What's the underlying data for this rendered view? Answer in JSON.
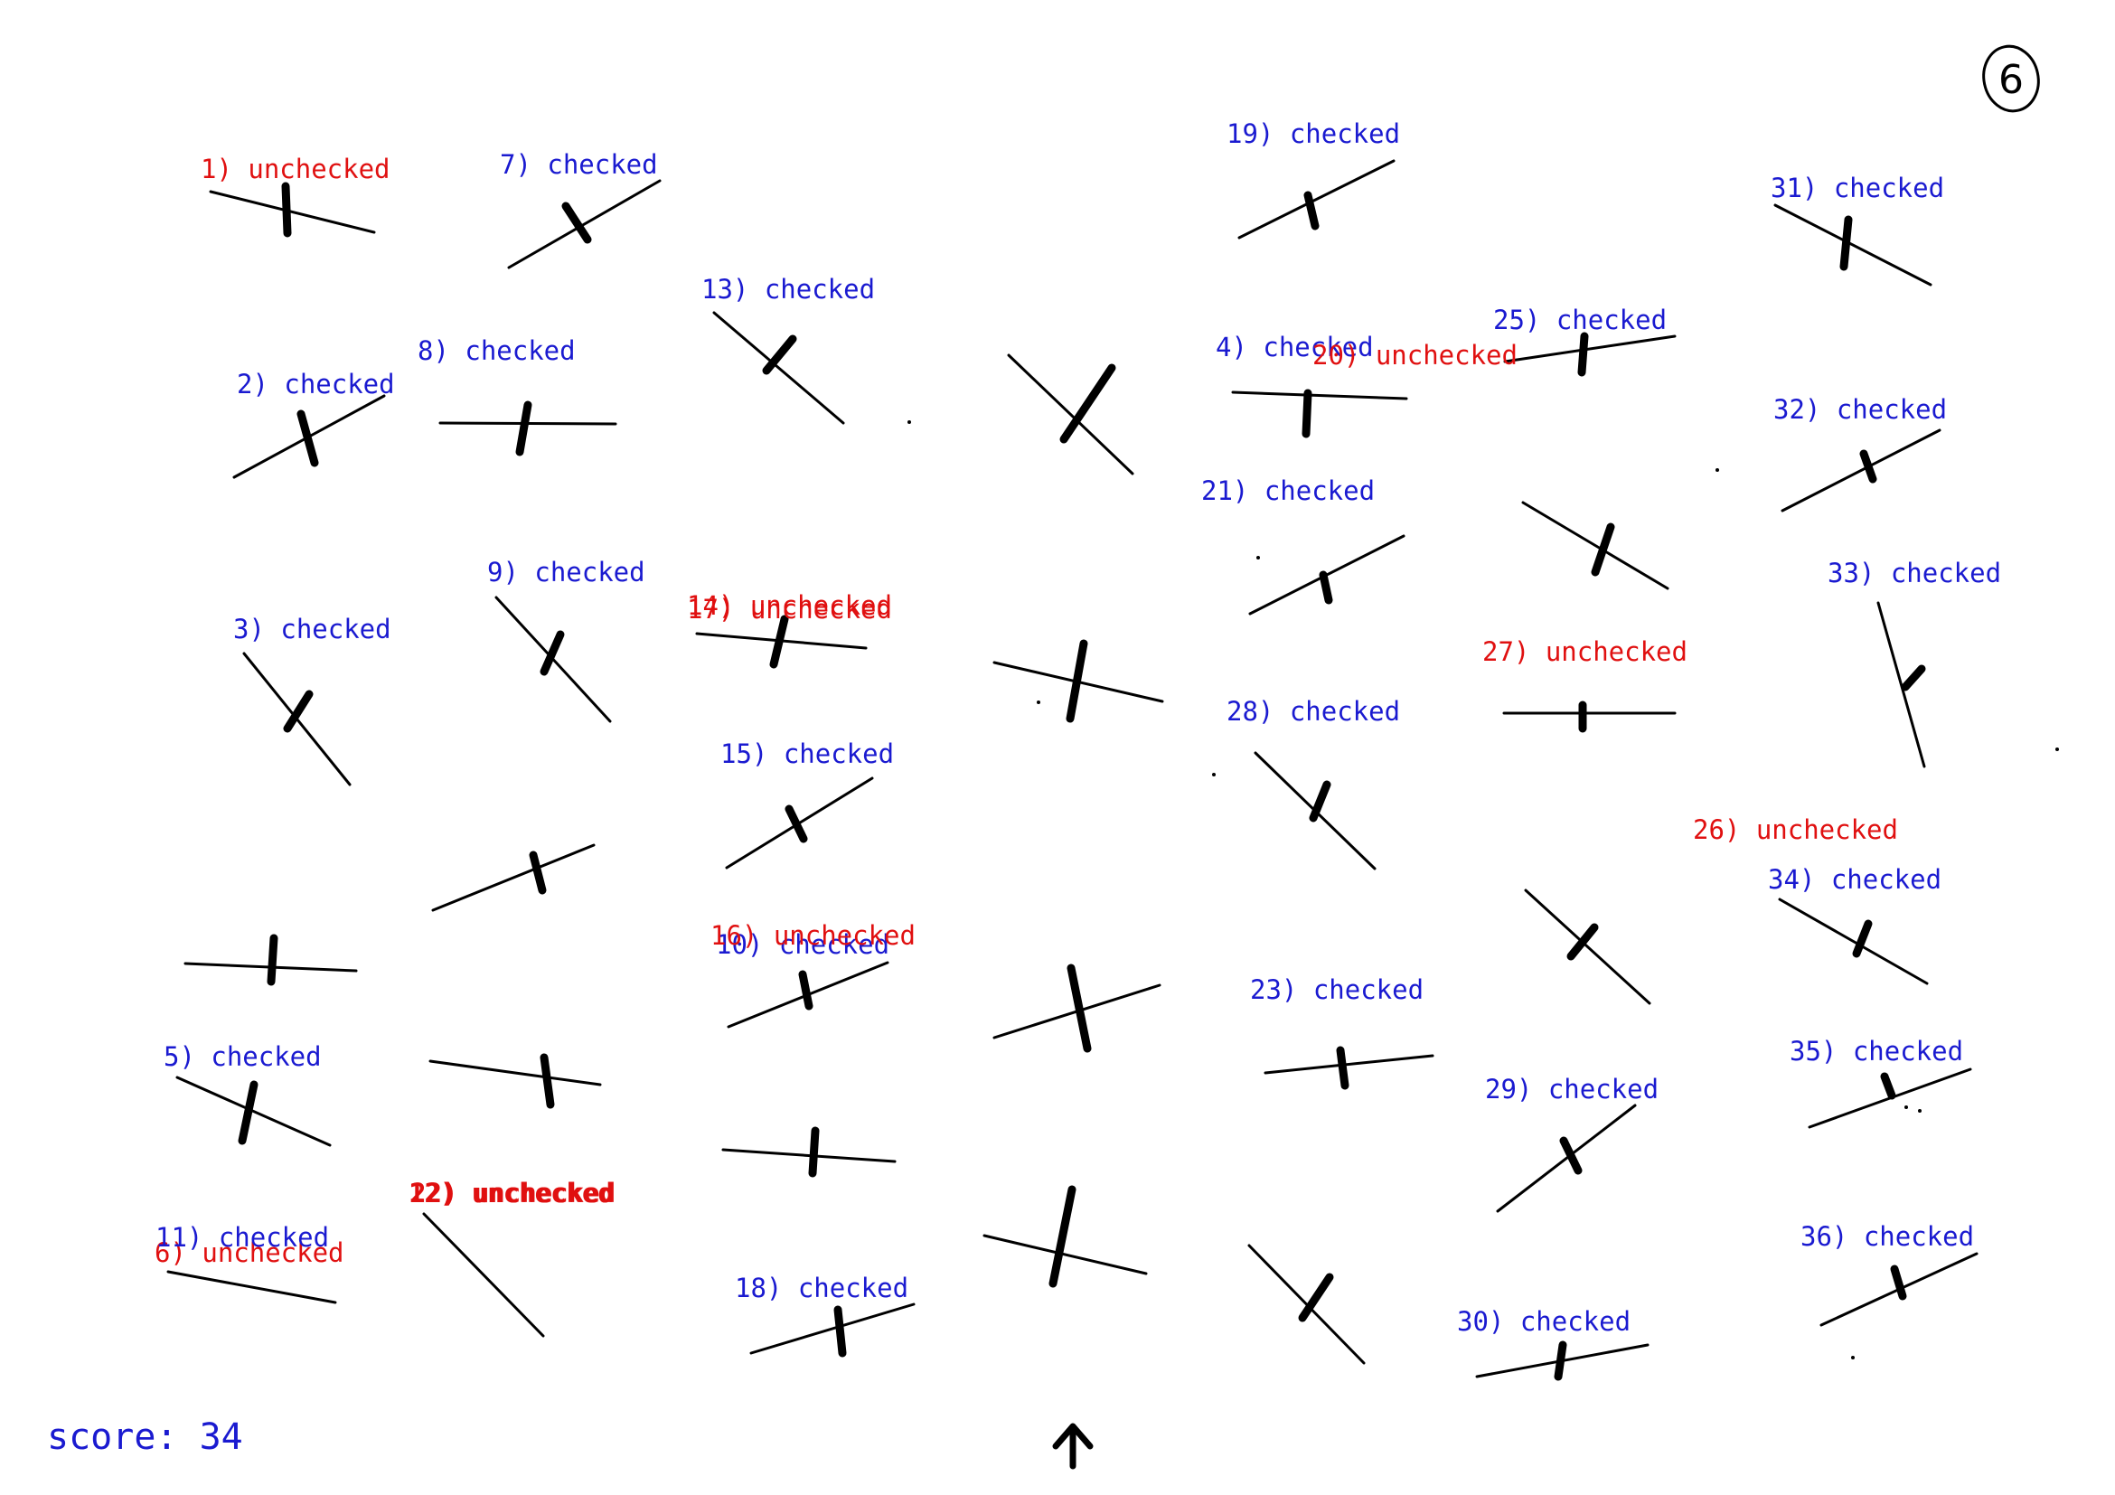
{
  "page_number": "6",
  "score_text": "score: 34",
  "colors": {
    "checked": "#1a1ad0",
    "unchecked": "#e01010",
    "stroke": "#000000"
  },
  "arrow_icon": "up-arrow-icon",
  "labels": [
    {
      "id": 1,
      "text": "1) unchecked",
      "status": "unchecked"
    },
    {
      "id": 2,
      "text": "2) checked",
      "status": "checked"
    },
    {
      "id": 3,
      "text": "3) checked",
      "status": "checked"
    },
    {
      "id": 4,
      "text": "4) checked",
      "status": "checked"
    },
    {
      "id": 5,
      "text": "5) checked",
      "status": "checked"
    },
    {
      "id": 6,
      "text": "6) unchecked",
      "status": "unchecked"
    },
    {
      "id": 7,
      "text": "7) checked",
      "status": "checked"
    },
    {
      "id": 8,
      "text": "8) checked",
      "status": "checked"
    },
    {
      "id": 9,
      "text": "9) checked",
      "status": "checked"
    },
    {
      "id": 10,
      "text": "10) checked",
      "status": "checked"
    },
    {
      "id": 11,
      "text": "11) checked",
      "status": "checked"
    },
    {
      "id": 12,
      "text": "12) unchecked",
      "status": "unchecked"
    },
    {
      "id": 13,
      "text": "13) checked",
      "status": "checked"
    },
    {
      "id": 14,
      "text": "14) unchecked",
      "status": "unchecked"
    },
    {
      "id": 15,
      "text": "15) checked",
      "status": "checked"
    },
    {
      "id": 16,
      "text": "16) unchecked",
      "status": "unchecked"
    },
    {
      "id": 17,
      "text": "17) unchecked",
      "status": "unchecked"
    },
    {
      "id": 18,
      "text": "18) checked",
      "status": "checked"
    },
    {
      "id": 19,
      "text": "19) checked",
      "status": "checked"
    },
    {
      "id": 20,
      "text": "20) unchecked",
      "status": "unchecked"
    },
    {
      "id": 21,
      "text": "21) checked",
      "status": "checked"
    },
    {
      "id": 22,
      "text": "22) unchecked",
      "status": "unchecked"
    },
    {
      "id": 23,
      "text": "23) checked",
      "status": "checked"
    },
    {
      "id": 25,
      "text": "25) checked",
      "status": "checked"
    },
    {
      "id": 26,
      "text": "26) unchecked",
      "status": "unchecked"
    },
    {
      "id": 27,
      "text": "27) unchecked",
      "status": "unchecked"
    },
    {
      "id": 28,
      "text": "28) checked",
      "status": "checked"
    },
    {
      "id": 29,
      "text": "29) checked",
      "status": "checked"
    },
    {
      "id": 30,
      "text": "30) checked",
      "status": "checked"
    },
    {
      "id": 31,
      "text": "31) checked",
      "status": "checked"
    },
    {
      "id": 32,
      "text": "32) checked",
      "status": "checked"
    },
    {
      "id": 33,
      "text": "33) checked",
      "status": "checked"
    },
    {
      "id": 34,
      "text": "34) checked",
      "status": "checked"
    },
    {
      "id": 35,
      "text": "35) checked",
      "status": "checked"
    },
    {
      "id": 36,
      "text": "36) checked",
      "status": "checked"
    }
  ]
}
